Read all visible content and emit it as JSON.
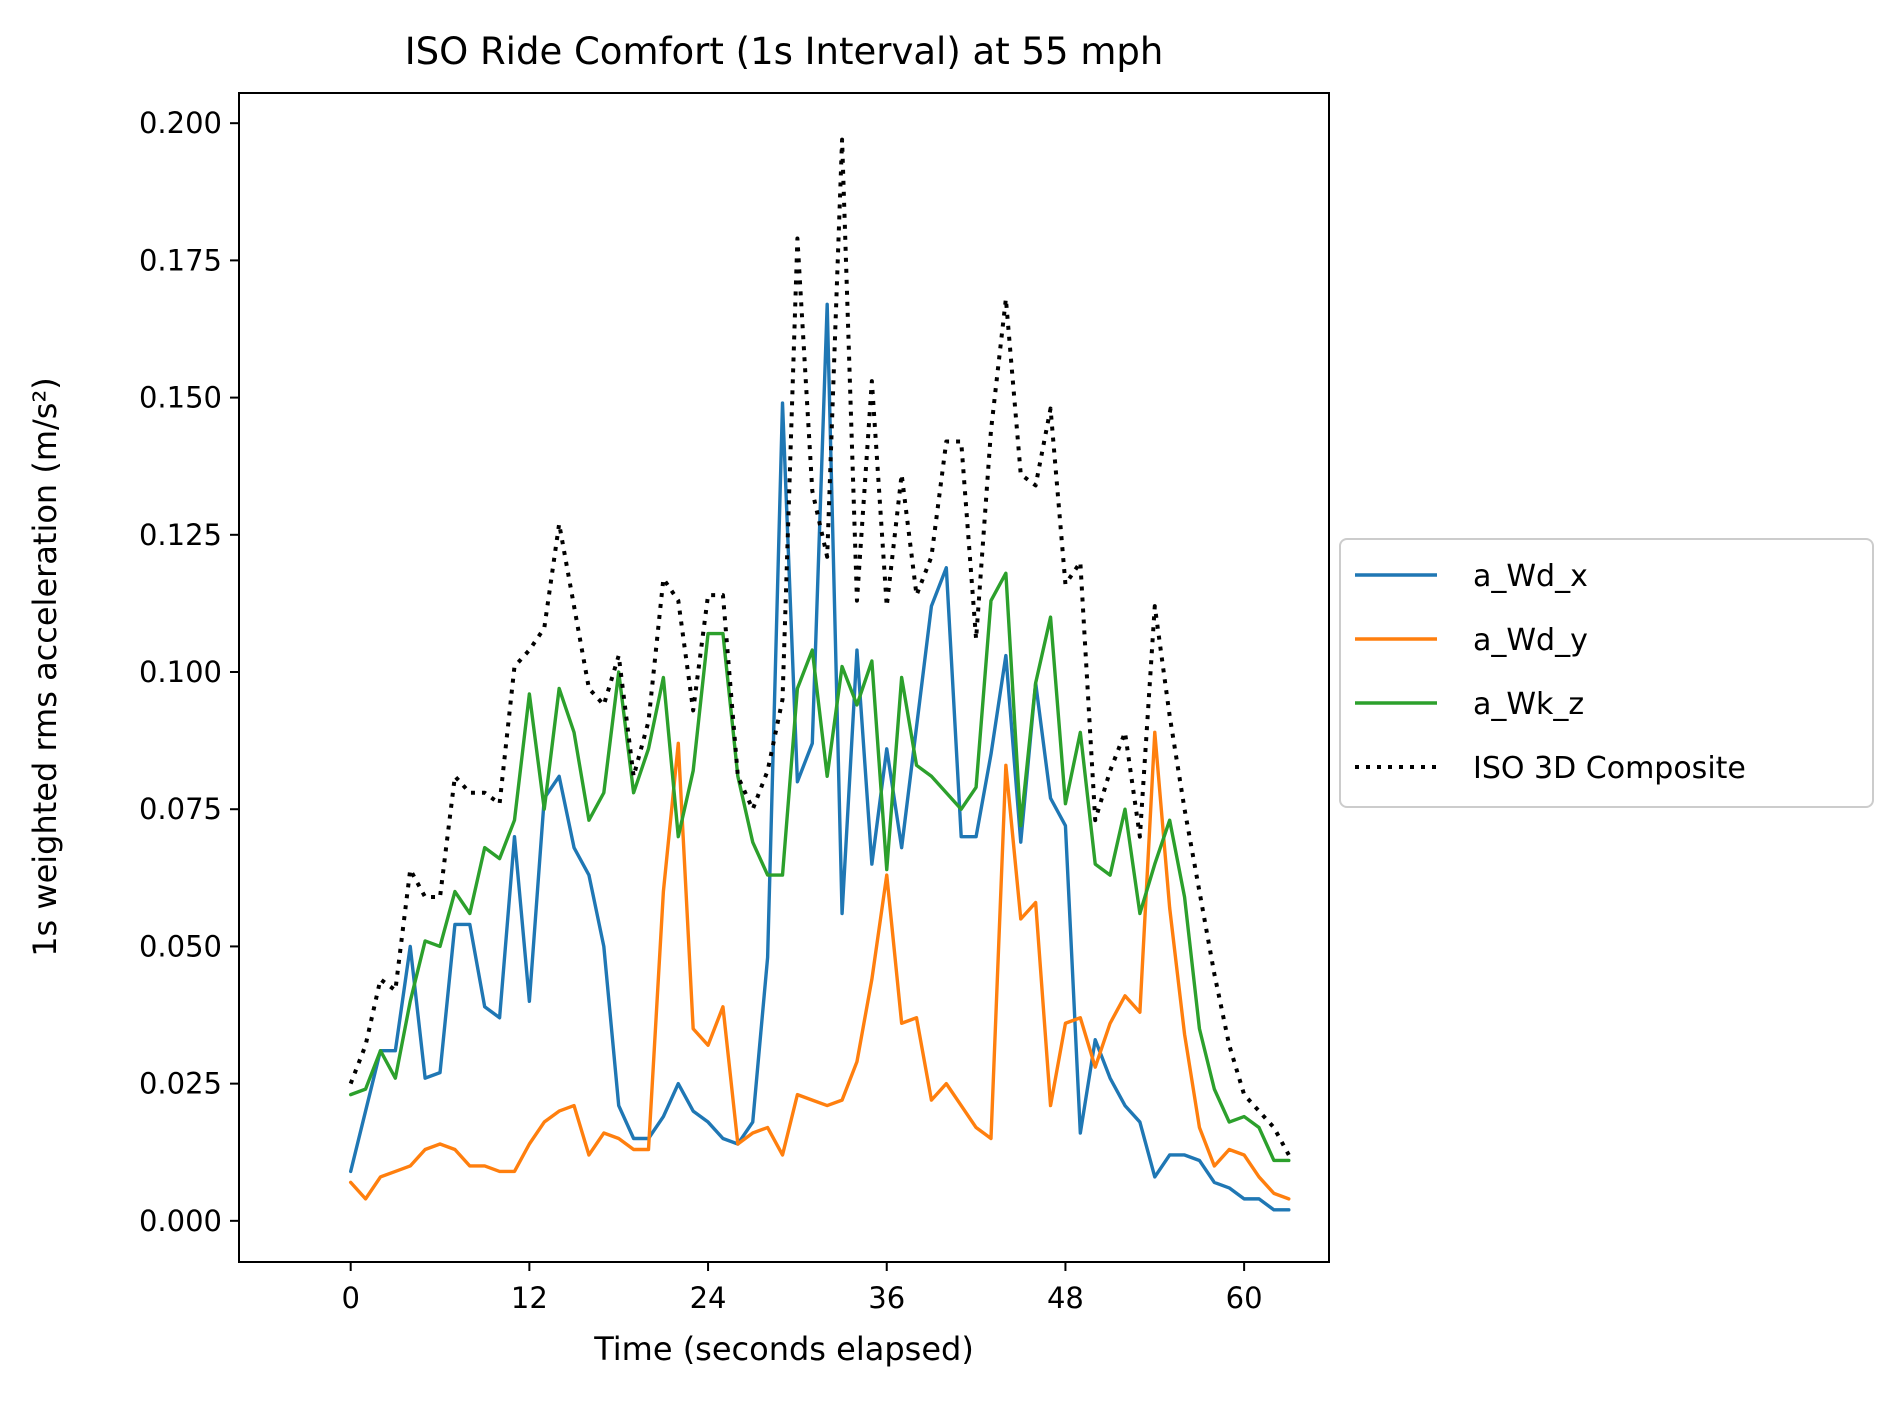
{
  "chart_data": {
    "type": "line",
    "title": "ISO Ride Comfort (1s Interval) at 55 mph",
    "xlabel": "Time (seconds elapsed)",
    "ylabel": "1s weighted rms acceleration (m/s²)",
    "xlim": [
      -7.5,
      65.7
    ],
    "ylim": [
      -0.0075,
      0.2055
    ],
    "xticks": [
      0,
      12,
      24,
      36,
      48,
      60
    ],
    "xtick_labels": [
      "0",
      "12",
      "24",
      "36",
      "48",
      "60"
    ],
    "yticks": [
      0.0,
      0.025,
      0.05,
      0.075,
      0.1,
      0.125,
      0.15,
      0.175,
      0.2
    ],
    "ytick_labels": [
      "0.000",
      "0.025",
      "0.050",
      "0.075",
      "0.100",
      "0.125",
      "0.150",
      "0.175",
      "0.200"
    ],
    "grid": false,
    "legend_position": "outside-right",
    "x": [
      0,
      1,
      2,
      3,
      4,
      5,
      6,
      7,
      8,
      9,
      10,
      11,
      12,
      13,
      14,
      15,
      16,
      17,
      18,
      19,
      20,
      21,
      22,
      23,
      24,
      25,
      26,
      27,
      28,
      29,
      30,
      31,
      32,
      33,
      34,
      35,
      36,
      37,
      38,
      39,
      40,
      41,
      42,
      43,
      44,
      45,
      46,
      47,
      48,
      49,
      50,
      51,
      52,
      53,
      54,
      55,
      56,
      57,
      58,
      59,
      60,
      61,
      62,
      63
    ],
    "series": [
      {
        "name": "a_Wd_x",
        "color": "#1f77b4",
        "style": "solid",
        "values": [
          0.009,
          0.02,
          0.031,
          0.031,
          0.05,
          0.026,
          0.027,
          0.054,
          0.054,
          0.039,
          0.037,
          0.07,
          0.04,
          0.077,
          0.081,
          0.068,
          0.063,
          0.05,
          0.021,
          0.015,
          0.015,
          0.019,
          0.025,
          0.02,
          0.018,
          0.015,
          0.014,
          0.018,
          0.048,
          0.149,
          0.08,
          0.087,
          0.167,
          0.056,
          0.104,
          0.065,
          0.086,
          0.068,
          0.09,
          0.112,
          0.119,
          0.07,
          0.07,
          0.085,
          0.103,
          0.069,
          0.098,
          0.077,
          0.072,
          0.016,
          0.033,
          0.026,
          0.021,
          0.018,
          0.008,
          0.012,
          0.012,
          0.011,
          0.007,
          0.006,
          0.004,
          0.004,
          0.002,
          0.002
        ]
      },
      {
        "name": "a_Wd_y",
        "color": "#ff7f0e",
        "style": "solid",
        "values": [
          0.007,
          0.004,
          0.008,
          0.009,
          0.01,
          0.013,
          0.014,
          0.013,
          0.01,
          0.01,
          0.009,
          0.009,
          0.014,
          0.018,
          0.02,
          0.021,
          0.012,
          0.016,
          0.015,
          0.013,
          0.013,
          0.06,
          0.087,
          0.035,
          0.032,
          0.039,
          0.014,
          0.016,
          0.017,
          0.012,
          0.023,
          0.022,
          0.021,
          0.022,
          0.029,
          0.044,
          0.063,
          0.036,
          0.037,
          0.022,
          0.025,
          0.021,
          0.017,
          0.015,
          0.083,
          0.055,
          0.058,
          0.021,
          0.036,
          0.037,
          0.028,
          0.036,
          0.041,
          0.038,
          0.089,
          0.057,
          0.034,
          0.017,
          0.01,
          0.013,
          0.012,
          0.008,
          0.005,
          0.004
        ]
      },
      {
        "name": "a_Wk_z",
        "color": "#2ca02c",
        "style": "solid",
        "values": [
          0.023,
          0.024,
          0.031,
          0.026,
          0.04,
          0.051,
          0.05,
          0.06,
          0.056,
          0.068,
          0.066,
          0.073,
          0.096,
          0.075,
          0.097,
          0.089,
          0.073,
          0.078,
          0.1,
          0.078,
          0.086,
          0.099,
          0.07,
          0.082,
          0.107,
          0.107,
          0.081,
          0.069,
          0.063,
          0.063,
          0.097,
          0.104,
          0.081,
          0.101,
          0.094,
          0.102,
          0.064,
          0.099,
          0.083,
          0.081,
          0.078,
          0.075,
          0.079,
          0.113,
          0.118,
          0.072,
          0.098,
          0.11,
          0.076,
          0.089,
          0.065,
          0.063,
          0.075,
          0.056,
          0.065,
          0.073,
          0.059,
          0.035,
          0.024,
          0.018,
          0.019,
          0.017,
          0.011,
          0.011
        ]
      },
      {
        "name": "ISO 3D Composite",
        "color": "#000000",
        "style": "dotted",
        "values": [
          0.025,
          0.032,
          0.044,
          0.042,
          0.064,
          0.059,
          0.059,
          0.081,
          0.078,
          0.078,
          0.076,
          0.101,
          0.104,
          0.108,
          0.127,
          0.112,
          0.097,
          0.094,
          0.103,
          0.081,
          0.091,
          0.117,
          0.113,
          0.093,
          0.114,
          0.114,
          0.081,
          0.075,
          0.082,
          0.095,
          0.179,
          0.133,
          0.121,
          0.197,
          0.113,
          0.153,
          0.112,
          0.136,
          0.114,
          0.121,
          0.142,
          0.142,
          0.106,
          0.144,
          0.168,
          0.136,
          0.134,
          0.148,
          0.116,
          0.12,
          0.073,
          0.082,
          0.089,
          0.07,
          0.112,
          0.092,
          0.075,
          0.06,
          0.045,
          0.032,
          0.023,
          0.02,
          0.017,
          0.012
        ]
      }
    ]
  }
}
